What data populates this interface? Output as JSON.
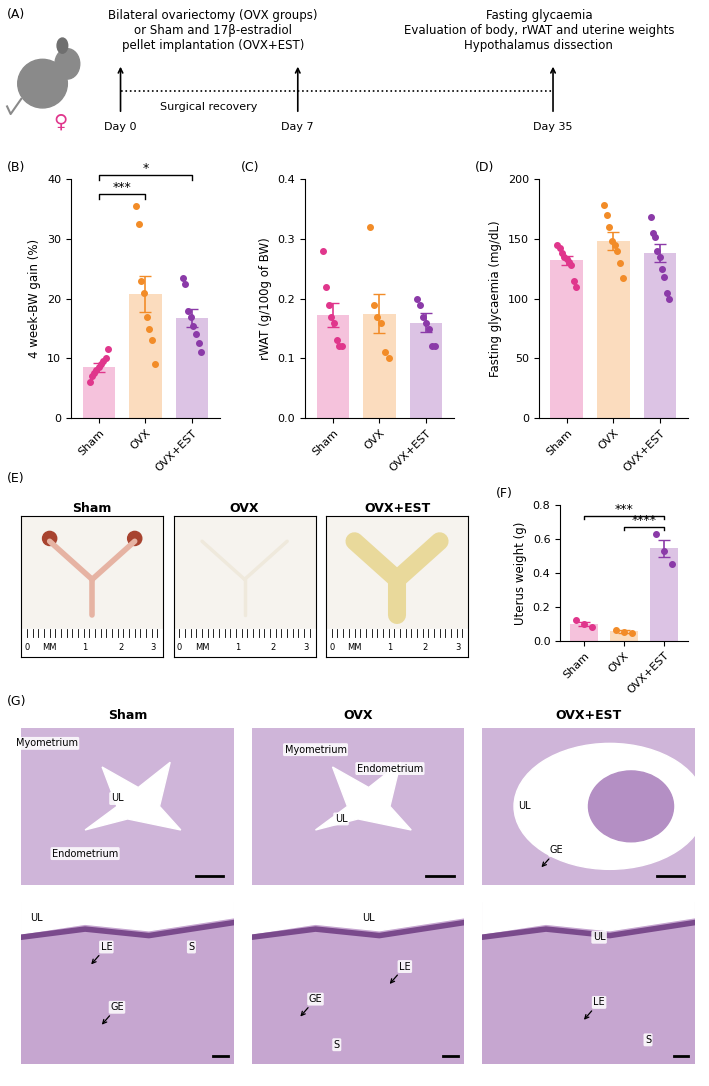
{
  "panel_a": {
    "label": "(A)",
    "left_text": "Bilateral ovariectomy (OVX groups)\nor Sham and 17β-estradiol\npellet implantation (OVX+EST)",
    "right_text": "Fasting glycaemia\nEvaluation of body, rWAT and uterine weights\nHypothalamus dissection",
    "symbol": "♀",
    "days": [
      "Day 0",
      "Day 7",
      "Day 35"
    ],
    "period": "Surgical recovery"
  },
  "chart_data": [
    {
      "panel": "(B)",
      "type": "bar",
      "y_label": "4 week-BW gain (%)",
      "categories": [
        "Sham",
        "OVX",
        "OVX+EST"
      ],
      "values": [
        8.5,
        20.8,
        16.8
      ],
      "errors": [
        0.8,
        3.0,
        1.5
      ],
      "points": [
        [
          6,
          7,
          7.5,
          8,
          8.5,
          9,
          9.5,
          10,
          11.5
        ],
        [
          35.5,
          32.5,
          23,
          21,
          17,
          15,
          13,
          9
        ],
        [
          23.5,
          22.5,
          18,
          17,
          15.5,
          14,
          12.5,
          11
        ]
      ],
      "colors": [
        "#e0368c",
        "#f28c28",
        "#8b3aa8"
      ],
      "ylim": [
        0,
        40
      ],
      "yticks": [
        0,
        10,
        20,
        30,
        40
      ],
      "significance": [
        {
          "from": "Sham",
          "to": "OVX",
          "label": "***"
        },
        {
          "from": "Sham",
          "to": "OVX+EST",
          "label": "*"
        }
      ]
    },
    {
      "panel": "(C)",
      "type": "bar",
      "y_label": "rWAT (g/100g of BW)",
      "categories": [
        "Sham",
        "OVX",
        "OVX+EST"
      ],
      "values": [
        0.172,
        0.175,
        0.16
      ],
      "errors": [
        0.02,
        0.033,
        0.016
      ],
      "points": [
        [
          0.28,
          0.22,
          0.19,
          0.17,
          0.16,
          0.13,
          0.12,
          0.12
        ],
        [
          0.32,
          0.19,
          0.17,
          0.16,
          0.11,
          0.1
        ],
        [
          0.2,
          0.19,
          0.17,
          0.16,
          0.15,
          0.12,
          0.12
        ]
      ],
      "colors": [
        "#e0368c",
        "#f28c28",
        "#8b3aa8"
      ],
      "ylim": [
        0.0,
        0.4
      ],
      "yticks": [
        0.0,
        0.1,
        0.2,
        0.3,
        0.4
      ]
    },
    {
      "panel": "(D)",
      "type": "bar",
      "y_label": "Fasting glycaemia (mg/dL)",
      "categories": [
        "Sham",
        "OVX",
        "OVX+EST"
      ],
      "values": [
        132,
        148,
        138
      ],
      "errors": [
        4,
        7.5,
        7.5
      ],
      "points": [
        [
          145,
          142,
          138,
          135,
          133,
          131,
          128,
          115,
          110
        ],
        [
          178,
          170,
          160,
          148,
          145,
          140,
          130,
          117
        ],
        [
          168,
          155,
          152,
          140,
          135,
          125,
          118,
          105,
          100
        ]
      ],
      "colors": [
        "#e0368c",
        "#f28c28",
        "#8b3aa8"
      ],
      "ylim": [
        0,
        200
      ],
      "yticks": [
        0,
        50,
        100,
        150,
        200
      ]
    },
    {
      "panel": "(F)",
      "type": "bar",
      "y_label": "Uterus weight (g)",
      "categories": [
        "Sham",
        "OVX",
        "OVX+EST"
      ],
      "values": [
        0.1,
        0.055,
        0.545
      ],
      "errors": [
        0.012,
        0.007,
        0.05
      ],
      "points": [
        [
          0.12,
          0.1,
          0.08
        ],
        [
          0.065,
          0.05,
          0.045
        ],
        [
          0.63,
          0.53,
          0.45
        ]
      ],
      "colors": [
        "#e0368c",
        "#f28c28",
        "#8b3aa8"
      ],
      "ylim": [
        0.0,
        0.8
      ],
      "yticks": [
        0.0,
        0.2,
        0.4,
        0.6,
        0.8
      ],
      "significance": [
        {
          "from": "OVX",
          "to": "OVX+EST",
          "label": "****"
        },
        {
          "from": "Sham",
          "to": "OVX+EST",
          "label": "***"
        }
      ]
    }
  ],
  "panel_e": {
    "label": "(E)",
    "photos": [
      "Sham",
      "OVX",
      "OVX+EST"
    ],
    "ruler": [
      "0",
      "MM",
      "1",
      "2",
      "3"
    ]
  },
  "panel_g": {
    "label": "(G)",
    "columns": [
      "Sham",
      "OVX",
      "OVX+EST"
    ],
    "top_labels": [
      [
        "Myometrium",
        "UL",
        "Endometrium"
      ],
      [
        "Myometrium",
        "Endometrium",
        "UL"
      ],
      [
        "UL",
        "GE"
      ]
    ],
    "bottom_labels": [
      [
        "UL",
        "LE",
        "S",
        "GE"
      ],
      [
        "UL",
        "LE",
        "GE",
        "S"
      ],
      [
        "UL",
        "LE",
        "S"
      ]
    ]
  }
}
